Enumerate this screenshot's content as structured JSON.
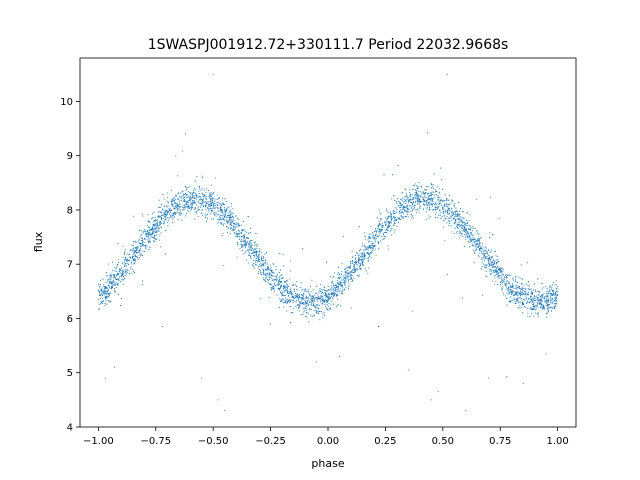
{
  "chart_data": {
    "type": "scatter",
    "title": "1SWASPJ001912.72+330111.7 Period 22032.9668s",
    "xlabel": "phase",
    "ylabel": "flux",
    "xlim": [
      -1.08,
      1.08
    ],
    "ylim": [
      4.0,
      10.8
    ],
    "x_ticks": [
      -1.0,
      -0.75,
      -0.5,
      -0.25,
      0.0,
      0.25,
      0.5,
      0.75,
      1.0
    ],
    "x_tick_labels": [
      "−1.00",
      "−0.75",
      "−0.50",
      "−0.25",
      "0.00",
      "0.25",
      "0.50",
      "0.75",
      "1.00"
    ],
    "y_ticks": [
      4,
      5,
      6,
      7,
      8,
      9,
      10
    ],
    "y_tick_labels": [
      "4",
      "5",
      "6",
      "7",
      "8",
      "9",
      "10"
    ],
    "grid": false,
    "legend": "none",
    "marker_color": "#1f77b4",
    "light_curve_model": {
      "description_of_trend": "double-wave sinusoid repeated over two phase cycles",
      "mean": 7.25,
      "amplitude": 0.95,
      "phase_of_maximum": [
        -0.58,
        0.42
      ],
      "phase_of_minimum": [
        -0.08,
        0.92
      ],
      "scatter_sigma": 0.13
    },
    "series": [
      {
        "points_sampled": [
          [
            -1.0,
            6.6
          ],
          [
            -0.9,
            7.1
          ],
          [
            -0.8,
            7.7
          ],
          [
            -0.7,
            8.1
          ],
          [
            -0.6,
            8.25
          ],
          [
            -0.5,
            8.1
          ],
          [
            -0.4,
            7.7
          ],
          [
            -0.3,
            7.2
          ],
          [
            -0.2,
            6.7
          ],
          [
            -0.1,
            6.4
          ],
          [
            0.0,
            6.6
          ],
          [
            0.1,
            7.1
          ],
          [
            0.2,
            7.7
          ],
          [
            0.3,
            8.1
          ],
          [
            0.4,
            8.25
          ],
          [
            0.5,
            8.1
          ],
          [
            0.6,
            7.7
          ],
          [
            0.7,
            7.2
          ],
          [
            0.8,
            6.7
          ],
          [
            0.9,
            6.4
          ],
          [
            1.0,
            6.6
          ]
        ],
        "outliers": [
          [
            -0.97,
            4.9
          ],
          [
            -0.93,
            5.1
          ],
          [
            -0.72,
            5.85
          ],
          [
            -0.55,
            4.9
          ],
          [
            -0.48,
            4.5
          ],
          [
            -0.45,
            4.3
          ],
          [
            -0.25,
            5.9
          ],
          [
            -0.05,
            5.2
          ],
          [
            0.05,
            5.3
          ],
          [
            0.22,
            5.85
          ],
          [
            0.35,
            5.05
          ],
          [
            0.45,
            4.5
          ],
          [
            0.48,
            4.65
          ],
          [
            0.6,
            4.3
          ],
          [
            0.7,
            4.9
          ],
          [
            0.85,
            4.8
          ],
          [
            0.95,
            5.35
          ],
          [
            -0.5,
            10.5
          ],
          [
            0.52,
            10.5
          ],
          [
            -0.62,
            9.4
          ]
        ]
      }
    ]
  }
}
